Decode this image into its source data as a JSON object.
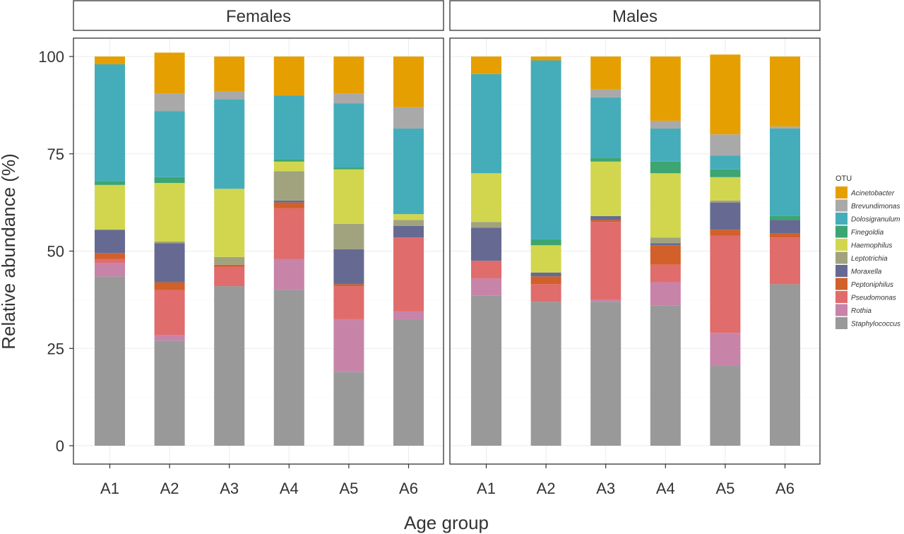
{
  "chart_data": {
    "type": "bar",
    "stacked": true,
    "facet_by": "sex",
    "panels": [
      {
        "title": "Females",
        "categories": [
          "A1",
          "A2",
          "A3",
          "A4",
          "A5",
          "A6"
        ]
      },
      {
        "title": "Males",
        "categories": [
          "A1",
          "A2",
          "A3",
          "A4",
          "A5",
          "A6"
        ]
      }
    ],
    "xlabel": "Age group",
    "ylabel": "Relative abundance (%)",
    "ylim": [
      0,
      100
    ],
    "yticks": [
      "0",
      "25",
      "50",
      "75",
      "100"
    ],
    "legend": {
      "title": "OTU",
      "position": "right"
    },
    "grid": true,
    "colors": {
      "Acinetobacter": "#E69F00",
      "Brevundimonas": "#A9A9A9",
      "Dolosigranulum": "#45ADBA",
      "Finegoldia": "#3DA572",
      "Haemophilus": "#D2D64E",
      "Leptotrichia": "#A0A37E",
      "Moraxella": "#666A92",
      "Peptoniphilus": "#D1602A",
      "Pseudomonas": "#E06C6C",
      "Rothia": "#C784A8",
      "Staphylococcus": "#999999"
    },
    "series": [
      {
        "name": "Staphylococcus",
        "Females": [
          43.5,
          27.0,
          41.0,
          40.0,
          19.0,
          32.5
        ],
        "Males": [
          38.5,
          37.0,
          37.0,
          36.0,
          20.5,
          41.5
        ]
      },
      {
        "name": "Rothia",
        "Females": [
          3.5,
          1.5,
          0.0,
          8.0,
          13.5,
          2.0
        ],
        "Males": [
          4.5,
          0.0,
          0.5,
          6.0,
          8.5,
          0.0
        ]
      },
      {
        "name": "Pseudomonas",
        "Females": [
          1.0,
          11.5,
          5.0,
          13.0,
          8.5,
          19.0
        ],
        "Males": [
          4.5,
          4.5,
          20.0,
          4.5,
          25.0,
          12.0
        ]
      },
      {
        "name": "Peptoniphilus",
        "Females": [
          1.5,
          2.0,
          0.5,
          1.5,
          0.5,
          0.0
        ],
        "Males": [
          0.0,
          2.0,
          0.5,
          5.0,
          1.5,
          1.0
        ]
      },
      {
        "name": "Moraxella",
        "Females": [
          6.0,
          10.0,
          0.0,
          0.5,
          9.0,
          3.0
        ],
        "Males": [
          8.5,
          1.0,
          1.0,
          0.5,
          7.0,
          3.5
        ]
      },
      {
        "name": "Leptotrichia",
        "Females": [
          0.0,
          0.5,
          2.0,
          7.5,
          6.5,
          1.5
        ],
        "Males": [
          1.5,
          0.0,
          0.0,
          1.5,
          0.5,
          0.0
        ]
      },
      {
        "name": "Haemophilus",
        "Females": [
          11.5,
          15.0,
          17.5,
          2.5,
          14.0,
          1.5
        ],
        "Males": [
          12.5,
          7.0,
          14.0,
          16.5,
          6.0,
          0.0
        ]
      },
      {
        "name": "Finegoldia",
        "Females": [
          1.0,
          1.5,
          0.0,
          0.5,
          0.5,
          0.0
        ],
        "Males": [
          0.0,
          1.5,
          1.0,
          3.0,
          2.0,
          1.0
        ]
      },
      {
        "name": "Dolosigranulum",
        "Females": [
          30.0,
          17.0,
          23.0,
          16.5,
          16.5,
          22.0
        ],
        "Males": [
          25.5,
          46.0,
          15.5,
          8.5,
          3.5,
          22.5
        ]
      },
      {
        "name": "Brevundimonas",
        "Females": [
          0.0,
          4.5,
          2.0,
          0.0,
          2.5,
          5.5
        ],
        "Males": [
          0.0,
          0.0,
          2.0,
          2.0,
          5.5,
          0.5
        ]
      },
      {
        "name": "Acinetobacter",
        "Females": [
          2.0,
          10.5,
          9.0,
          10.0,
          9.5,
          13.0
        ],
        "Males": [
          4.5,
          1.0,
          8.5,
          16.5,
          20.5,
          18.0
        ]
      }
    ]
  }
}
